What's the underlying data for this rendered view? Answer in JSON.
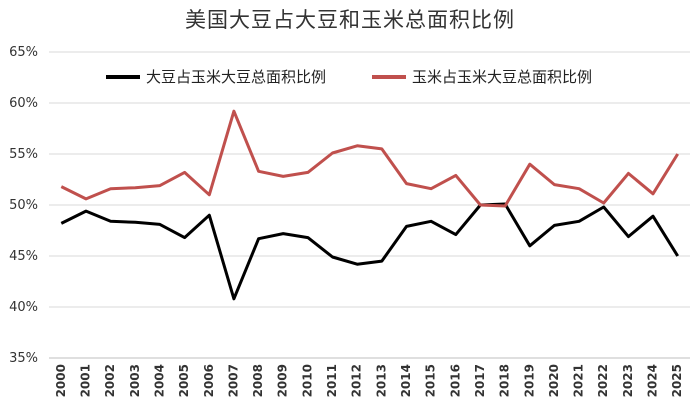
{
  "chart_data": {
    "type": "line",
    "title": "美国大豆占大豆和玉米总面积比例",
    "x": [
      "2000",
      "2001",
      "2002",
      "2003",
      "2004",
      "2005",
      "2006",
      "2007",
      "2008",
      "2009",
      "2010",
      "2011",
      "2012",
      "2013",
      "2014",
      "2015",
      "2016",
      "2017",
      "2018",
      "2019",
      "2020",
      "2021",
      "2022",
      "2023",
      "2024",
      "2025"
    ],
    "yticks": [
      "35%",
      "40%",
      "45%",
      "50%",
      "55%",
      "60%",
      "65%"
    ],
    "ylim": [
      35,
      65
    ],
    "ylabel": "",
    "xlabel": "",
    "grid": true,
    "legend": "top",
    "series": [
      {
        "name": "大豆占玉米大豆总面积比例",
        "color": "#000000",
        "values": [
          48.2,
          49.4,
          48.4,
          48.3,
          48.1,
          46.8,
          49.0,
          40.8,
          46.7,
          47.2,
          46.8,
          44.9,
          44.2,
          44.5,
          47.9,
          48.4,
          47.1,
          50.0,
          50.1,
          46.0,
          48.0,
          48.4,
          49.8,
          46.9,
          48.9,
          45.0
        ]
      },
      {
        "name": "玉米占玉米大豆总面积比例",
        "color": "#c0504d",
        "values": [
          51.8,
          50.6,
          51.6,
          51.7,
          51.9,
          53.2,
          51.0,
          59.2,
          53.3,
          52.8,
          53.2,
          55.1,
          55.8,
          55.5,
          52.1,
          51.6,
          52.9,
          50.0,
          49.9,
          54.0,
          52.0,
          51.6,
          50.2,
          53.1,
          51.1,
          55.0
        ]
      }
    ]
  }
}
